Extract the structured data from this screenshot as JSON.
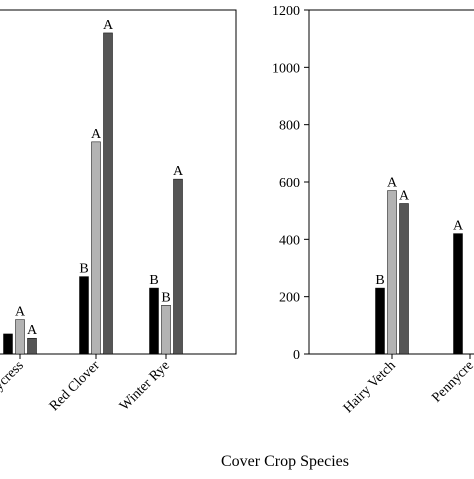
{
  "figure": {
    "xlabel": "Cover Crop Species"
  },
  "chart_data": [
    {
      "type": "bar",
      "panel": "left",
      "categories": [
        "Pennycress",
        "Red Clover",
        "Winter Rye"
      ],
      "category_labels_visible": [
        "ycress",
        "Red Clover",
        "Winter Rye"
      ],
      "ylim": [
        0,
        1200
      ],
      "series": [
        {
          "color": "#000000",
          "values": [
            70,
            270,
            230
          ],
          "labels": [
            "",
            "B",
            "B"
          ]
        },
        {
          "color": "#b3b3b3",
          "values": [
            120,
            740,
            170
          ],
          "labels": [
            "A",
            "A",
            "B"
          ]
        },
        {
          "color": "#555555",
          "values": [
            55,
            1120,
            610
          ],
          "labels": [
            "A",
            "A",
            "A"
          ]
        }
      ]
    },
    {
      "type": "bar",
      "panel": "right",
      "categories": [
        "Hairy Vetch",
        "Pennycress"
      ],
      "category_labels_visible": [
        "Hairy Vetch",
        "Pennycre"
      ],
      "ylim": [
        0,
        1200
      ],
      "yticks": [
        0,
        200,
        400,
        600,
        800,
        1000,
        1200
      ],
      "series": [
        {
          "color": "#000000",
          "values": [
            230,
            420
          ],
          "labels": [
            "B",
            "A"
          ]
        },
        {
          "color": "#b3b3b3",
          "values": [
            570,
            null
          ],
          "labels": [
            "A",
            ""
          ]
        },
        {
          "color": "#555555",
          "values": [
            525,
            null
          ],
          "labels": [
            "A",
            ""
          ]
        }
      ]
    }
  ]
}
